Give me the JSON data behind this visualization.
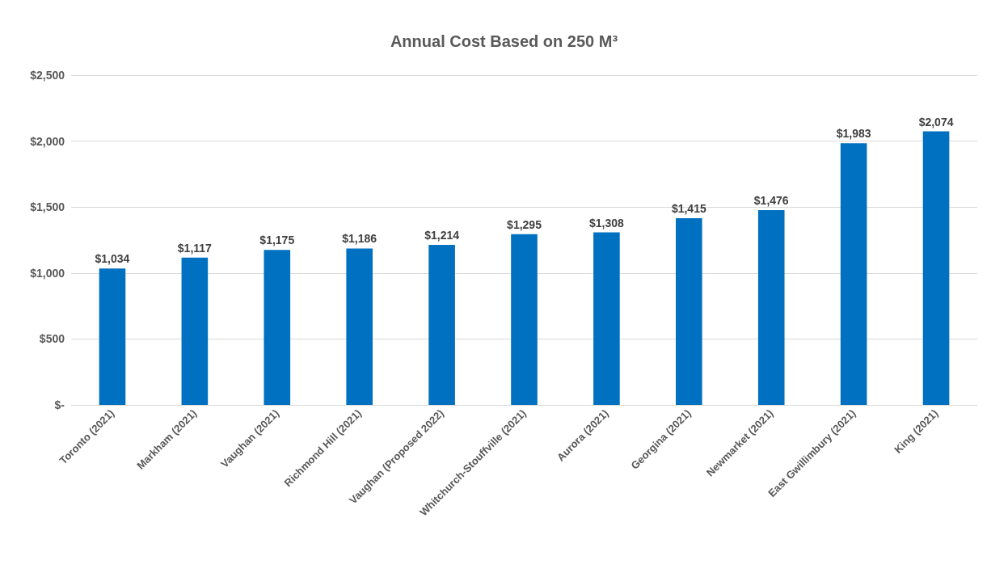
{
  "chart_data": {
    "type": "bar",
    "title": "Annual Cost Based on 250 M³",
    "categories": [
      "Toronto (2021)",
      "Markham (2021)",
      "Vaughan (2021)",
      "Richmond Hill (2021)",
      "Vaughan (Proposed 2022)",
      "Whitchurch-Stouffville (2021)",
      "Aurora (2021)",
      "Georgina (2021)",
      "Newmarket (2021)",
      "East Gwillimbury (2021)",
      "King (2021)"
    ],
    "values": [
      1034,
      1117,
      1175,
      1186,
      1214,
      1295,
      1308,
      1415,
      1476,
      1983,
      2074
    ],
    "value_labels": [
      "$1,034",
      "$1,117",
      "$1,175",
      "$1,186",
      "$1,214",
      "$1,295",
      "$1,308",
      "$1,415",
      "$1,476",
      "$1,983",
      "$2,074"
    ],
    "color": "#0070c0",
    "ylim": [
      0,
      2500
    ],
    "yticks": [
      {
        "value": 0,
        "label": "$-"
      },
      {
        "value": 500,
        "label": "$500"
      },
      {
        "value": 1000,
        "label": "$1,000"
      },
      {
        "value": 1500,
        "label": "$1,500"
      },
      {
        "value": 2000,
        "label": "$2,000"
      },
      {
        "value": 2500,
        "label": "$2,500"
      }
    ],
    "grid": "y"
  }
}
